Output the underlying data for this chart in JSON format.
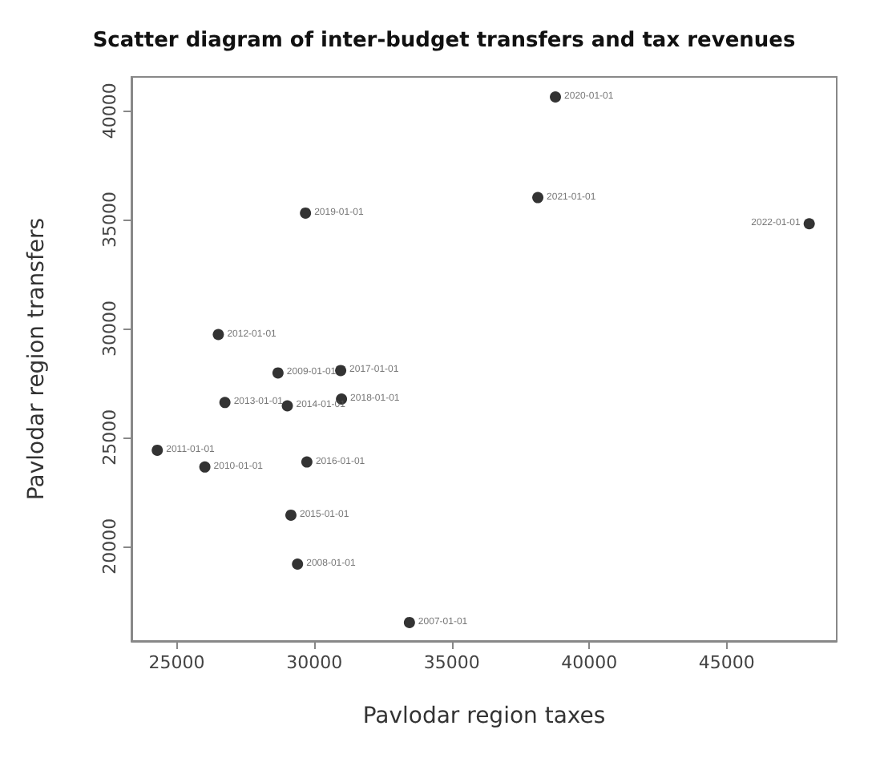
{
  "chart_data": {
    "type": "scatter",
    "title": "Scatter diagram of inter-budget transfers and tax revenues",
    "xlabel": "Pavlodar region taxes",
    "ylabel": "Pavlodar region transfers",
    "x": [
      33460,
      29390,
      28680,
      26020,
      24290,
      26510,
      26750,
      29020,
      29150,
      29730,
      30960,
      30990,
      29680,
      38770,
      38130,
      48000
    ],
    "values": [
      16500,
      19180,
      27960,
      23640,
      24410,
      29720,
      26600,
      26450,
      21430,
      23870,
      28070,
      26760,
      35300,
      40630,
      36010,
      34810
    ],
    "value_labels": [
      "2007-01-01",
      "2008-01-01",
      "2009-01-01",
      "2010-01-01",
      "2011-01-01",
      "2012-01-01",
      "2013-01-01",
      "2014-01-01",
      "2015-01-01",
      "2016-01-01",
      "2017-01-01",
      "2018-01-01",
      "2019-01-01",
      "2020-01-01",
      "2021-01-01",
      "2022-01-01"
    ],
    "color": "#000000",
    "marker": "circle",
    "grid": false,
    "xlim": [
      23350,
      49000
    ],
    "ylim": [
      15650,
      41550
    ],
    "xticks": [
      25000,
      30000,
      35000,
      40000,
      45000
    ],
    "yticks": [
      20000,
      25000,
      30000,
      35000,
      40000
    ]
  }
}
